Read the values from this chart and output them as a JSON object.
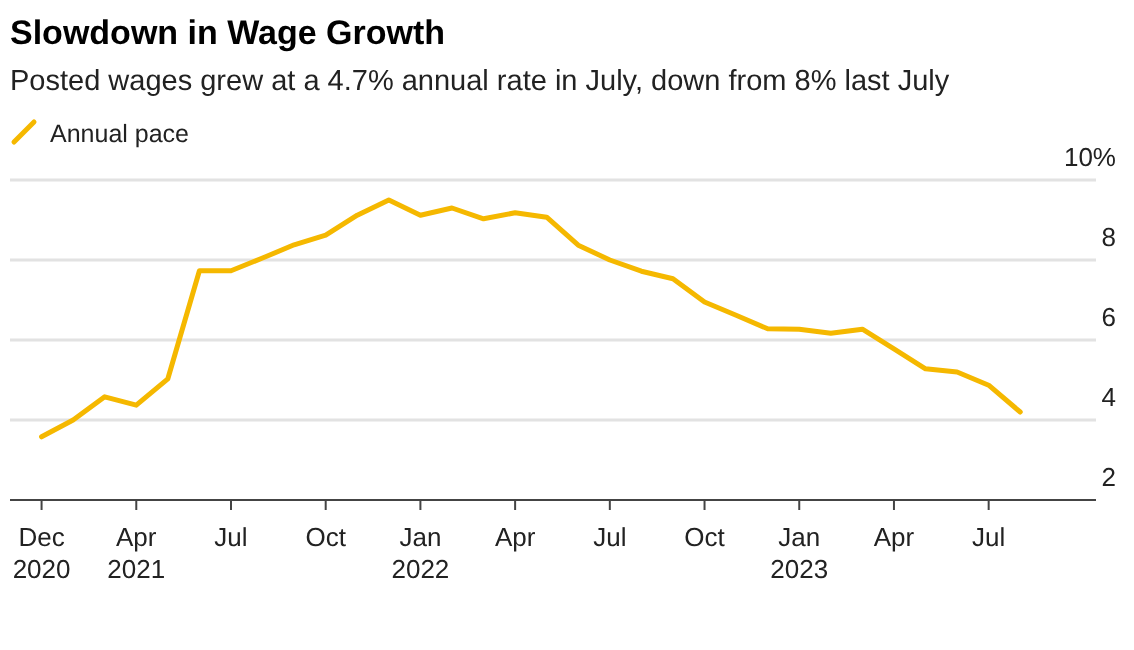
{
  "chart_data": {
    "type": "line",
    "title": "Slowdown in Wage Growth",
    "subtitle": "Posted wages grew at a 4.7% annual rate in July, down from 8% last July",
    "categories": [
      "Dec 2020",
      null,
      null,
      "Apr 2021",
      null,
      null,
      "Jul",
      null,
      null,
      "Oct",
      null,
      null,
      "Jan 2022",
      null,
      null,
      "Apr",
      null,
      null,
      "Jul",
      null,
      null,
      "Oct",
      null,
      null,
      "Jan 2023",
      null,
      null,
      "Apr",
      null,
      null,
      "Jul",
      null
    ],
    "series": [
      {
        "name": "Annual pace",
        "color": "#f5b800",
        "values": [
          3.58,
          4.0,
          4.58,
          4.37,
          5.03,
          7.73,
          7.73,
          8.05,
          8.38,
          8.62,
          9.12,
          9.5,
          9.12,
          9.3,
          9.03,
          9.18,
          9.07,
          8.37,
          8.0,
          7.72,
          7.53,
          6.95,
          6.62,
          6.28,
          6.27,
          6.17,
          6.27,
          5.78,
          5.28,
          5.2,
          4.87,
          4.2
        ]
      }
    ],
    "ylim": [
      2,
      10
    ],
    "yticks": [
      2,
      4,
      6,
      8,
      {
        "value": 10,
        "label": "10%"
      }
    ],
    "grid": "y",
    "legend": "top left",
    "marker": "none",
    "line_style": "solid"
  }
}
